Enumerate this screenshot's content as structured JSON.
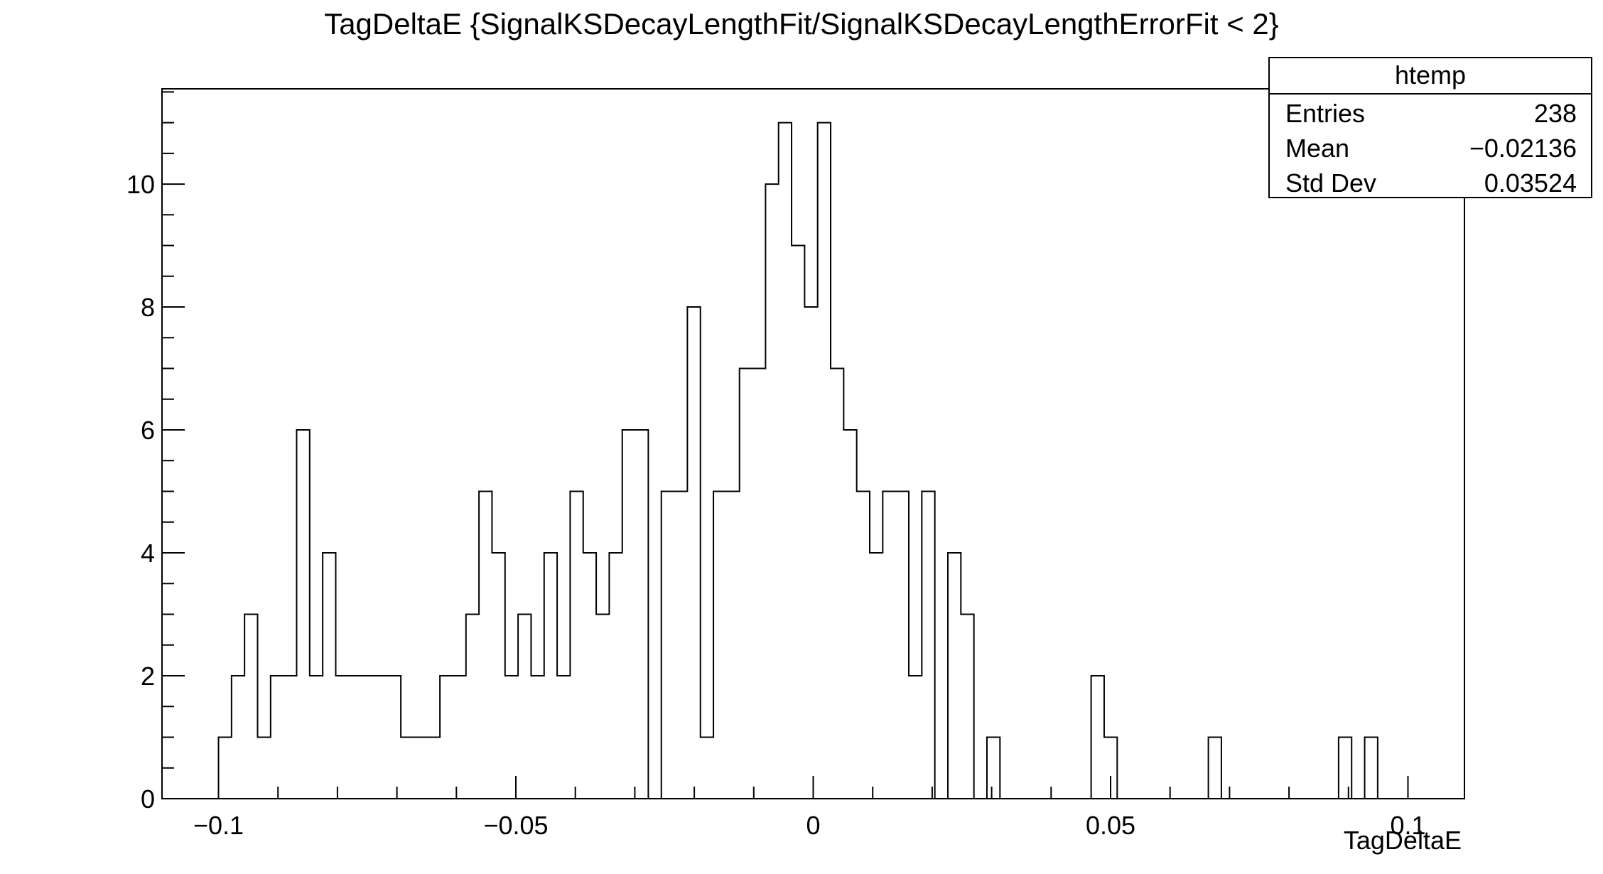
{
  "chart_data": {
    "type": "bar",
    "title": "TagDeltaE {SignalKSDecayLengthFit/SignalKSDecayLengthErrorFit < 2}",
    "xlabel": "TagDeltaE",
    "ylabel": "",
    "xlim": [
      -0.1095,
      0.1095
    ],
    "ylim": [
      0,
      11.55
    ],
    "x_ticks": [
      {
        "value": -0.1,
        "label": "−0.1"
      },
      {
        "value": -0.05,
        "label": "−0.05"
      },
      {
        "value": 0,
        "label": "0"
      },
      {
        "value": 0.05,
        "label": "0.05"
      },
      {
        "value": 0.1,
        "label": "0.1"
      }
    ],
    "y_ticks": [
      {
        "value": 0,
        "label": "0"
      },
      {
        "value": 2,
        "label": "2"
      },
      {
        "value": 4,
        "label": "4"
      },
      {
        "value": 6,
        "label": "6"
      },
      {
        "value": 8,
        "label": "8"
      },
      {
        "value": 10,
        "label": "10"
      }
    ],
    "bin_start": -0.1,
    "bin_width": 0.00219,
    "values": [
      1,
      2,
      3,
      1,
      2,
      2,
      6,
      2,
      4,
      2,
      2,
      2,
      2,
      2,
      1,
      1,
      1,
      2,
      2,
      3,
      5,
      4,
      2,
      3,
      2,
      4,
      2,
      5,
      4,
      3,
      4,
      6,
      6,
      0,
      5,
      5,
      8,
      1,
      5,
      5,
      7,
      7,
      10,
      11,
      9,
      8,
      11,
      7,
      6,
      5,
      4,
      5,
      5,
      2,
      5,
      0,
      4,
      3,
      0,
      1,
      0,
      0,
      0,
      0,
      0,
      0,
      0,
      2,
      1,
      0,
      0,
      0,
      0,
      0,
      0,
      0,
      1,
      0,
      0,
      0,
      0,
      0,
      0,
      0,
      0,
      0,
      1,
      0,
      1
    ],
    "grid": false,
    "legend": "none",
    "line_color": "#000000"
  },
  "stats": {
    "name": "htemp",
    "rows": [
      {
        "key": "Entries",
        "value": "238"
      },
      {
        "key": "Mean",
        "value": "−0.02136"
      },
      {
        "key": "Std Dev",
        "value": "0.03524"
      }
    ]
  }
}
